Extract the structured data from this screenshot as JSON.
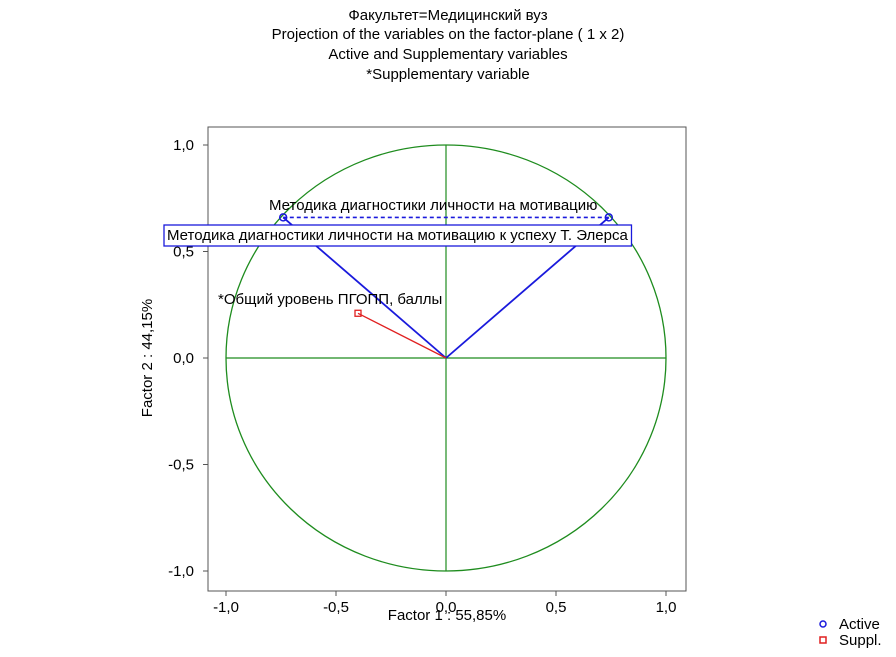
{
  "chart_data": {
    "type": "scatter",
    "title_lines": [
      "Факультет=Медицинский вуз",
      "Projection of the variables on the factor-plane (  1 x   2)",
      "Active and Supplementary variables",
      "*Supplementary variable"
    ],
    "xlabel": "Factor 1 : 55,85%",
    "ylabel": "Factor 2 : 44,15%",
    "xlim": [
      -1.0,
      1.0
    ],
    "ylim": [
      -1.0,
      1.0
    ],
    "xticks": [
      "-1,0",
      "-0,5",
      "0,0",
      "0,5",
      "1,0"
    ],
    "yticks": [
      "1,0",
      "0,5",
      "0,0",
      "-0,5",
      "-1,0"
    ],
    "unit_circle": true,
    "zero_lines": true,
    "legend_position": "bottom-right",
    "legend": [
      {
        "label": "Active",
        "marker": "circle",
        "color": "#1a1adc"
      },
      {
        "label": "Suppl.",
        "marker": "square",
        "color": "#e02020"
      }
    ],
    "points": [
      {
        "label": "Методика диагностики личности на мотивацию",
        "x": 0.74,
        "y": 0.66,
        "kind": "active",
        "boxed": false
      },
      {
        "label": "Методика диагностики личности на мотивацию к успеху Т. Элерса",
        "x": -0.74,
        "y": 0.66,
        "kind": "active",
        "boxed": true
      },
      {
        "label": "*Общий уровень ПГОПП, баллы",
        "x": -0.4,
        "y": 0.21,
        "kind": "supplementary",
        "boxed": false
      }
    ],
    "colors": {
      "active": "#1a1adc",
      "supplementary": "#e02020",
      "circle": "#1e8c1e",
      "zero_lines": "#1e8c1e"
    }
  }
}
